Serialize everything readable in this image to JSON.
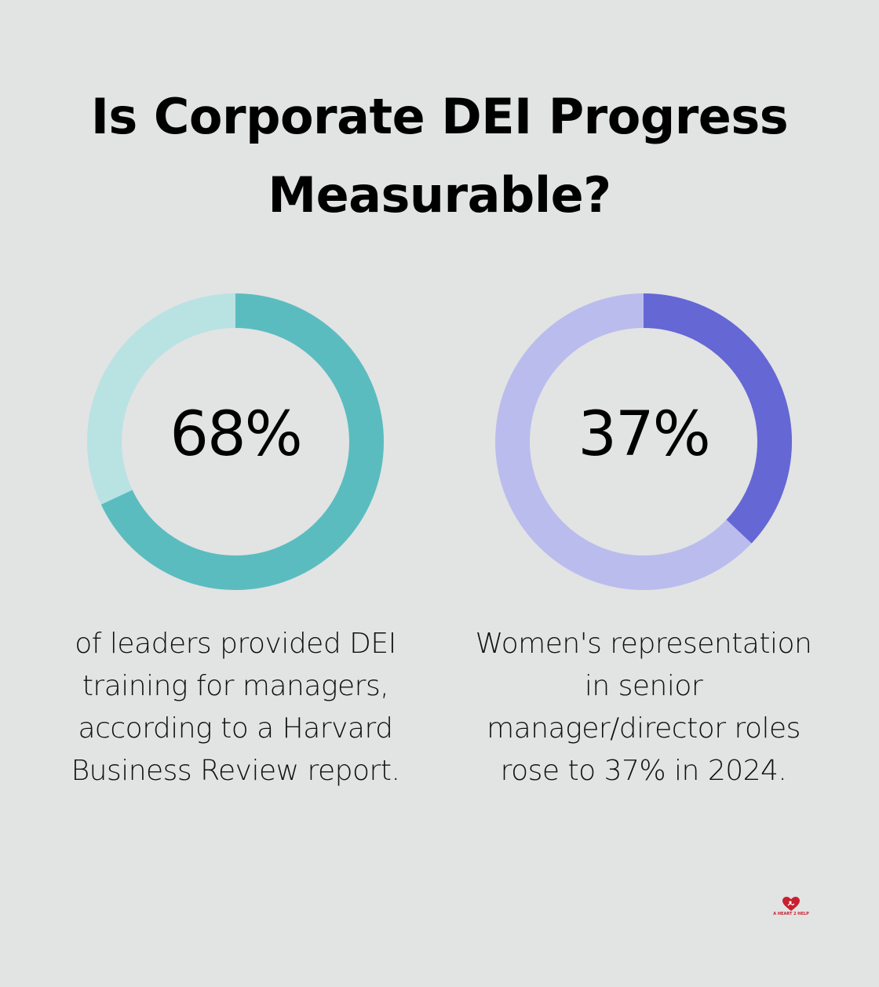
{
  "title": {
    "line1": "Is Corporate DEI Progress",
    "line2": "Measurable?"
  },
  "chart_data": [
    {
      "type": "pie",
      "variant": "donut",
      "value": 68,
      "display": "68%",
      "caption": "of leaders provided DEI training for managers, according to a Harvard Business Review report.",
      "colors": {
        "filled": "#5bbcbf",
        "track": "#b9e2e3"
      }
    },
    {
      "type": "pie",
      "variant": "donut",
      "value": 37,
      "display": "37%",
      "caption": "Women's representation in senior manager/director roles rose to 37% in 2024.",
      "colors": {
        "filled": "#6467d4",
        "track": "#babced"
      }
    }
  ],
  "logo": {
    "text": "A HEART 2 HELP",
    "color": "#c8202f"
  },
  "colors": {
    "background": "#e2e3e3",
    "text": "#000000"
  }
}
